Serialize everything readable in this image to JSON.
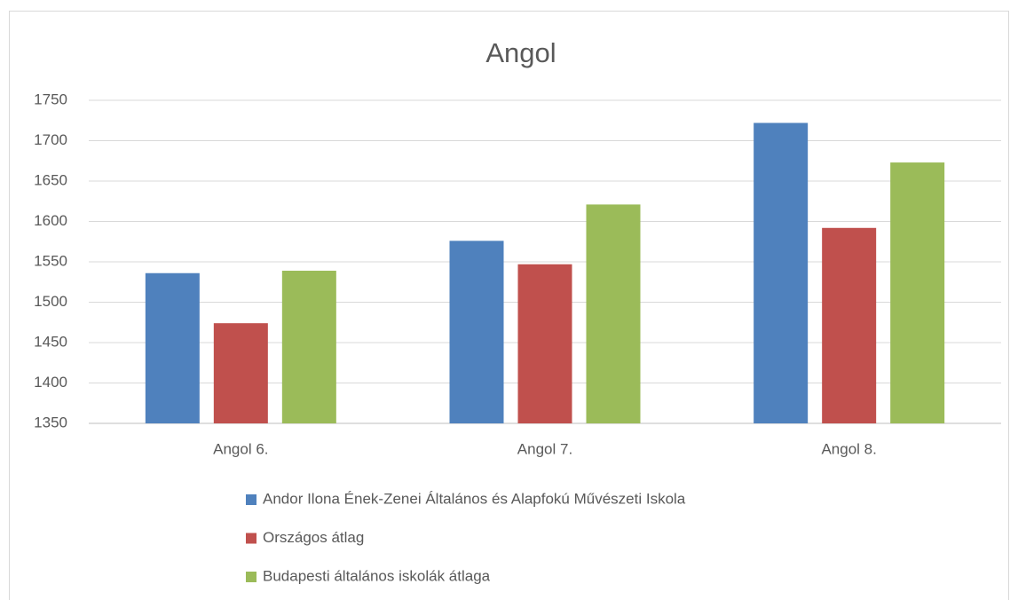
{
  "chart_data": {
    "type": "bar",
    "title": "Angol",
    "categories": [
      "Angol 6.",
      "Angol 7.",
      "Angol 8."
    ],
    "series": [
      {
        "name": "Andor Ilona Ének-Zenei Általános és Alapfokú Művészeti Iskola",
        "color": "#4f81bd",
        "values": [
          1536,
          1576,
          1722
        ]
      },
      {
        "name": "Országos átlag",
        "color": "#c0504d",
        "values": [
          1474,
          1547,
          1592
        ]
      },
      {
        "name": "Budapesti általános iskolák átlaga",
        "color": "#9bbb59",
        "values": [
          1539,
          1621,
          1673
        ]
      }
    ],
    "ylim": [
      1350,
      1750
    ],
    "yticks": [
      1350,
      1400,
      1450,
      1500,
      1550,
      1600,
      1650,
      1700,
      1750
    ],
    "grid": true,
    "legend": "bottom"
  }
}
